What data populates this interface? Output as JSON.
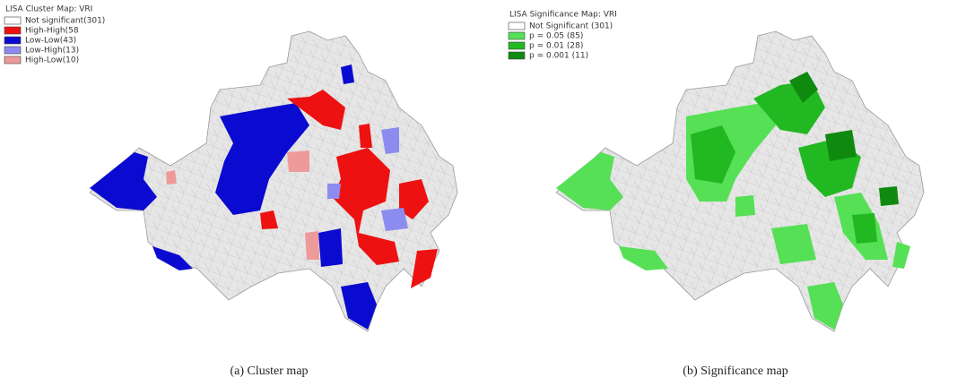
{
  "panels": [
    {
      "legend": {
        "title": "LISA Cluster Map: VRI",
        "items": [
          {
            "label": "Not significant(301)",
            "color": "#ffffff"
          },
          {
            "label": "High-High(58",
            "color": "#ee1111"
          },
          {
            "label": "Low-Low(43)",
            "color": "#0a0ad0"
          },
          {
            "label": "Low-High(13)",
            "color": "#8c8cf0"
          },
          {
            "label": "High-Low(10)",
            "color": "#ee9a9a"
          }
        ]
      },
      "caption": "(a)  Cluster  map"
    },
    {
      "legend": {
        "title": "LISA Significance Map: VRI",
        "items": [
          {
            "label": "Not Significant (301)",
            "color": "#ffffff"
          },
          {
            "label": "p = 0.05 (85)",
            "color": "#55e055"
          },
          {
            "label": "p = 0.01 (28)",
            "color": "#22b822"
          },
          {
            "label": "p = 0.001 (11)",
            "color": "#0f8a0f"
          }
        ]
      },
      "caption": "(b)  Significance  map"
    }
  ]
}
